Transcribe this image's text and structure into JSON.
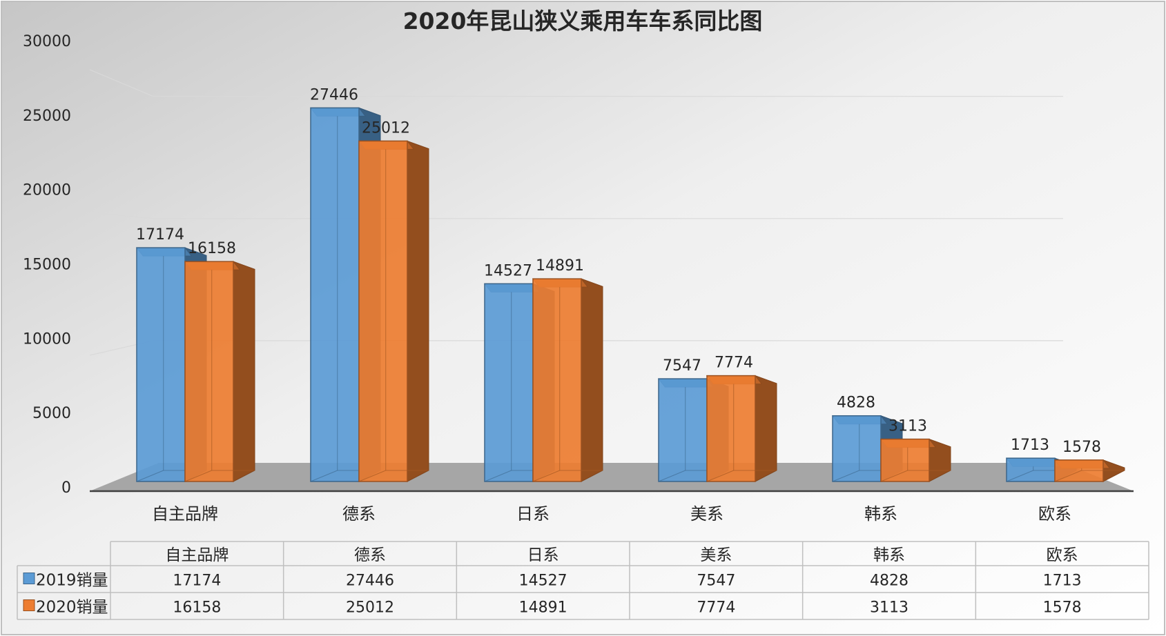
{
  "chart_data": {
    "type": "bar",
    "title": "2020年昆山狭义乘用车车系同比图",
    "categories": [
      "自主品牌",
      "德系",
      "日系",
      "美系",
      "韩系",
      "欧系"
    ],
    "series": [
      {
        "name": "2019销量",
        "color": "#5b9bd5",
        "values": [
          17174,
          27446,
          14527,
          7547,
          4828,
          1713
        ]
      },
      {
        "name": "2020销量",
        "color": "#ed7d31",
        "values": [
          16158,
          25012,
          14891,
          7774,
          3113,
          1578
        ]
      }
    ],
    "yticks": [
      "0",
      "5000",
      "10000",
      "15000",
      "20000",
      "25000",
      "30000"
    ],
    "ylim": [
      0,
      30000
    ],
    "grid": true,
    "legend": "data-table",
    "data_table": true,
    "style": "3d-clustered-column"
  }
}
